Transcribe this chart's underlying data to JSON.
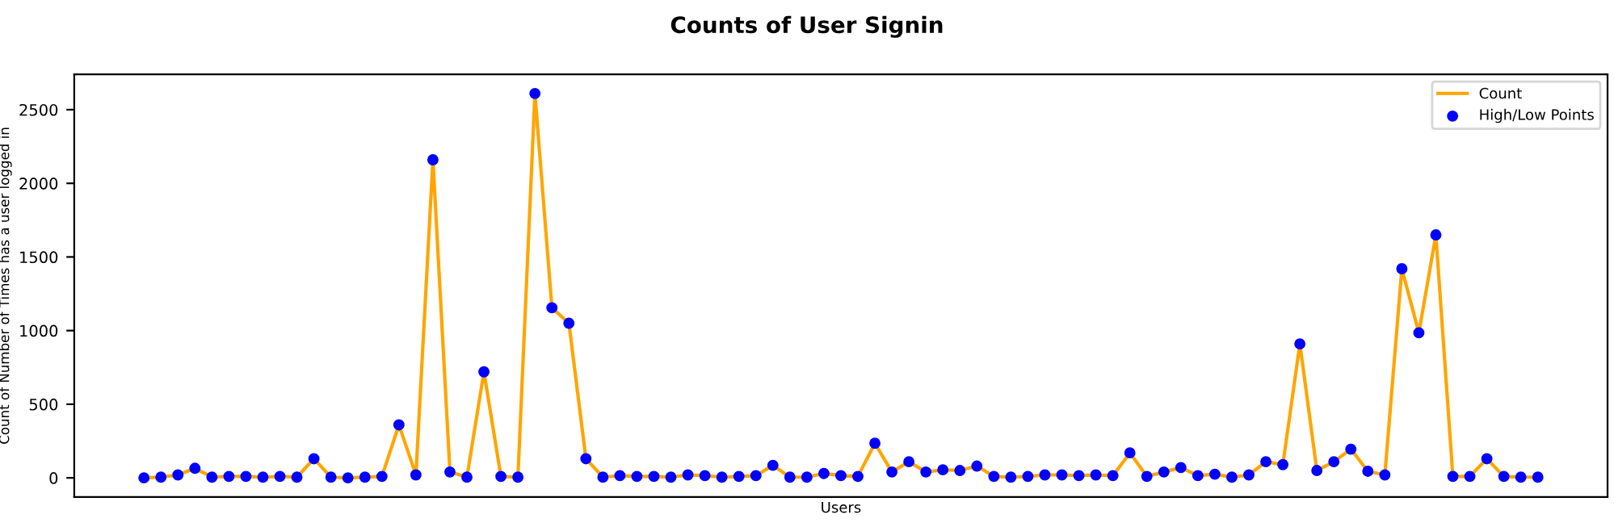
{
  "chart_data": {
    "type": "line",
    "title": "Counts of User Signin",
    "xlabel": "Users",
    "ylabel": "Count of Number of Times has a user logged in",
    "categories": [
      null,
      null,
      null,
      null,
      null,
      null,
      null,
      null,
      null,
      null,
      null,
      null,
      null,
      null,
      null,
      null,
      null,
      null,
      null,
      null,
      null,
      null,
      null,
      null,
      null,
      null,
      null,
      null,
      null,
      null,
      null,
      null,
      null,
      null,
      null,
      null,
      null,
      null,
      null,
      null,
      null,
      null,
      null,
      null,
      null,
      null,
      null,
      null,
      null,
      null,
      null,
      null,
      null,
      null,
      null,
      null,
      null,
      null,
      null,
      null,
      null,
      null,
      null,
      null,
      null,
      null,
      null,
      null,
      null,
      null,
      null,
      null,
      null,
      null,
      null,
      null,
      null,
      null,
      null,
      null,
      null,
      null,
      null
    ],
    "series": [
      {
        "name": "Count",
        "color": "#ffa500",
        "values": [
          0,
          5,
          20,
          65,
          5,
          10,
          10,
          5,
          10,
          5,
          130,
          5,
          0,
          5,
          10,
          360,
          20,
          2160,
          40,
          5,
          720,
          10,
          5,
          2610,
          1155,
          1050,
          130,
          5,
          15,
          10,
          10,
          5,
          20,
          15,
          5,
          10,
          15,
          85,
          5,
          5,
          30,
          15,
          10,
          235,
          40,
          110,
          40,
          55,
          50,
          80,
          10,
          5,
          10,
          20,
          20,
          15,
          20,
          15,
          170,
          10,
          40,
          70,
          15,
          25,
          5,
          20,
          110,
          90,
          910,
          50,
          110,
          195,
          45,
          20,
          1420,
          985,
          1650,
          10,
          10,
          130,
          10,
          5,
          5
        ]
      },
      {
        "name": "High/Low Points",
        "type": "scatter",
        "color": "#0000ff",
        "marker": "circle",
        "values": [
          0,
          5,
          20,
          65,
          5,
          10,
          10,
          5,
          10,
          5,
          130,
          5,
          0,
          5,
          10,
          360,
          20,
          2160,
          40,
          5,
          720,
          10,
          5,
          2610,
          1155,
          1050,
          130,
          5,
          15,
          10,
          10,
          5,
          20,
          15,
          5,
          10,
          15,
          85,
          5,
          5,
          30,
          15,
          10,
          235,
          40,
          110,
          40,
          55,
          50,
          80,
          10,
          5,
          10,
          20,
          20,
          15,
          20,
          15,
          170,
          10,
          40,
          70,
          15,
          25,
          5,
          20,
          110,
          90,
          910,
          50,
          110,
          195,
          45,
          20,
          1420,
          985,
          1650,
          10,
          10,
          130,
          10,
          5,
          5
        ]
      }
    ],
    "ylim": [
      -130,
      2740
    ],
    "yticks": [
      0,
      500,
      1000,
      1500,
      2000,
      2500
    ],
    "tick_labels": "y",
    "grid": false,
    "legend": "top right"
  }
}
